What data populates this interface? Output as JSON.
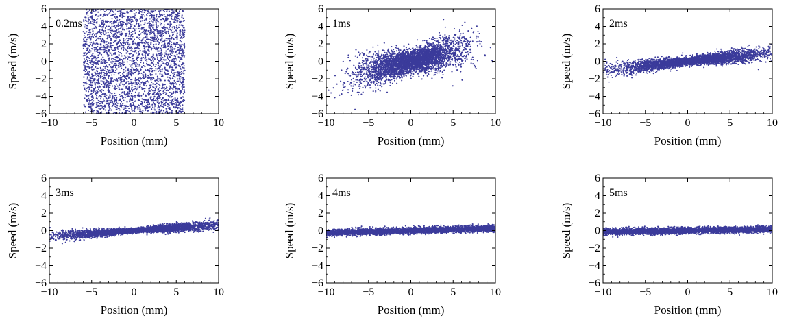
{
  "figure": {
    "colors": {
      "points": "#3b3b9b",
      "frame": "#000000",
      "background": "#ffffff"
    }
  },
  "chart_data": [
    {
      "type": "scatter",
      "panel_label": "0.2ms",
      "xlabel": "Position (mm)",
      "ylabel": "Speed (m/s)",
      "xlim": [
        -10,
        10
      ],
      "ylim": [
        -6,
        6
      ],
      "xticks": [
        -10,
        -5,
        0,
        5,
        10
      ],
      "yticks": [
        -6,
        -4,
        -2,
        0,
        2,
        4,
        6
      ],
      "grid": false,
      "series": [
        {
          "n_points": 3000,
          "distribution": "uniform",
          "x_range": [
            -6,
            6
          ],
          "y_range": [
            -6,
            6
          ],
          "slope": 0.07,
          "noise_sd": 3.2
        }
      ]
    },
    {
      "type": "scatter",
      "panel_label": "1ms",
      "xlabel": "Position (mm)",
      "ylabel": "Speed (m/s)",
      "xlim": [
        -10,
        10
      ],
      "ylim": [
        -6,
        6
      ],
      "xticks": [
        -10,
        -5,
        0,
        5,
        10
      ],
      "yticks": [
        -6,
        -4,
        -2,
        0,
        2,
        4,
        6
      ],
      "grid": false,
      "series": [
        {
          "n_points": 4000,
          "distribution": "normal",
          "x_mean": 0,
          "x_sd": 3.0,
          "slope": 0.22,
          "noise_sd": 1.0,
          "noise_scales_with_x": true
        }
      ]
    },
    {
      "type": "scatter",
      "panel_label": "2ms",
      "xlabel": "Position (mm)",
      "ylabel": "Speed (m/s)",
      "xlim": [
        -10,
        10
      ],
      "ylim": [
        -6,
        6
      ],
      "xticks": [
        -10,
        -5,
        0,
        5,
        10
      ],
      "yticks": [
        -6,
        -4,
        -2,
        0,
        2,
        4,
        6
      ],
      "grid": false,
      "series": [
        {
          "n_points": 4000,
          "distribution": "normal",
          "x_mean": 0.5,
          "x_sd": 4.5,
          "slope": 0.1,
          "noise_sd": 0.35,
          "noise_scales_with_x": true
        }
      ]
    },
    {
      "type": "scatter",
      "panel_label": "3ms",
      "xlabel": "Position (mm)",
      "ylabel": "Speed (m/s)",
      "xlim": [
        -10,
        10
      ],
      "ylim": [
        -6,
        6
      ],
      "xticks": [
        -10,
        -5,
        0,
        5,
        10
      ],
      "yticks": [
        -6,
        -4,
        -2,
        0,
        2,
        4,
        6
      ],
      "grid": false,
      "series": [
        {
          "n_points": 4000,
          "distribution": "normal",
          "x_mean": 0.5,
          "x_sd": 5.0,
          "slope": 0.065,
          "noise_sd": 0.22,
          "noise_scales_with_x": true
        }
      ]
    },
    {
      "type": "scatter",
      "panel_label": "4ms",
      "xlabel": "Position (mm)",
      "ylabel": "Speed (m/s)",
      "xlim": [
        -10,
        10
      ],
      "ylim": [
        -6,
        6
      ],
      "xticks": [
        -10,
        -5,
        0,
        5,
        10
      ],
      "yticks": [
        -6,
        -4,
        -2,
        0,
        2,
        4,
        6
      ],
      "grid": false,
      "series": [
        {
          "n_points": 4000,
          "distribution": "uniform",
          "x_range": [
            -10,
            10
          ],
          "slope": 0.025,
          "noise_sd": 0.18,
          "noise_scales_with_x": false
        }
      ]
    },
    {
      "type": "scatter",
      "panel_label": "5ms",
      "xlabel": "Position (mm)",
      "ylabel": "Speed (m/s)",
      "xlim": [
        -10,
        10
      ],
      "ylim": [
        -6,
        6
      ],
      "xticks": [
        -10,
        -5,
        0,
        5,
        10
      ],
      "yticks": [
        -6,
        -4,
        -2,
        0,
        2,
        4,
        6
      ],
      "grid": false,
      "series": [
        {
          "n_points": 4000,
          "distribution": "uniform",
          "x_range": [
            -10,
            10
          ],
          "slope": 0.015,
          "noise_sd": 0.18,
          "noise_scales_with_x": false
        }
      ]
    }
  ]
}
